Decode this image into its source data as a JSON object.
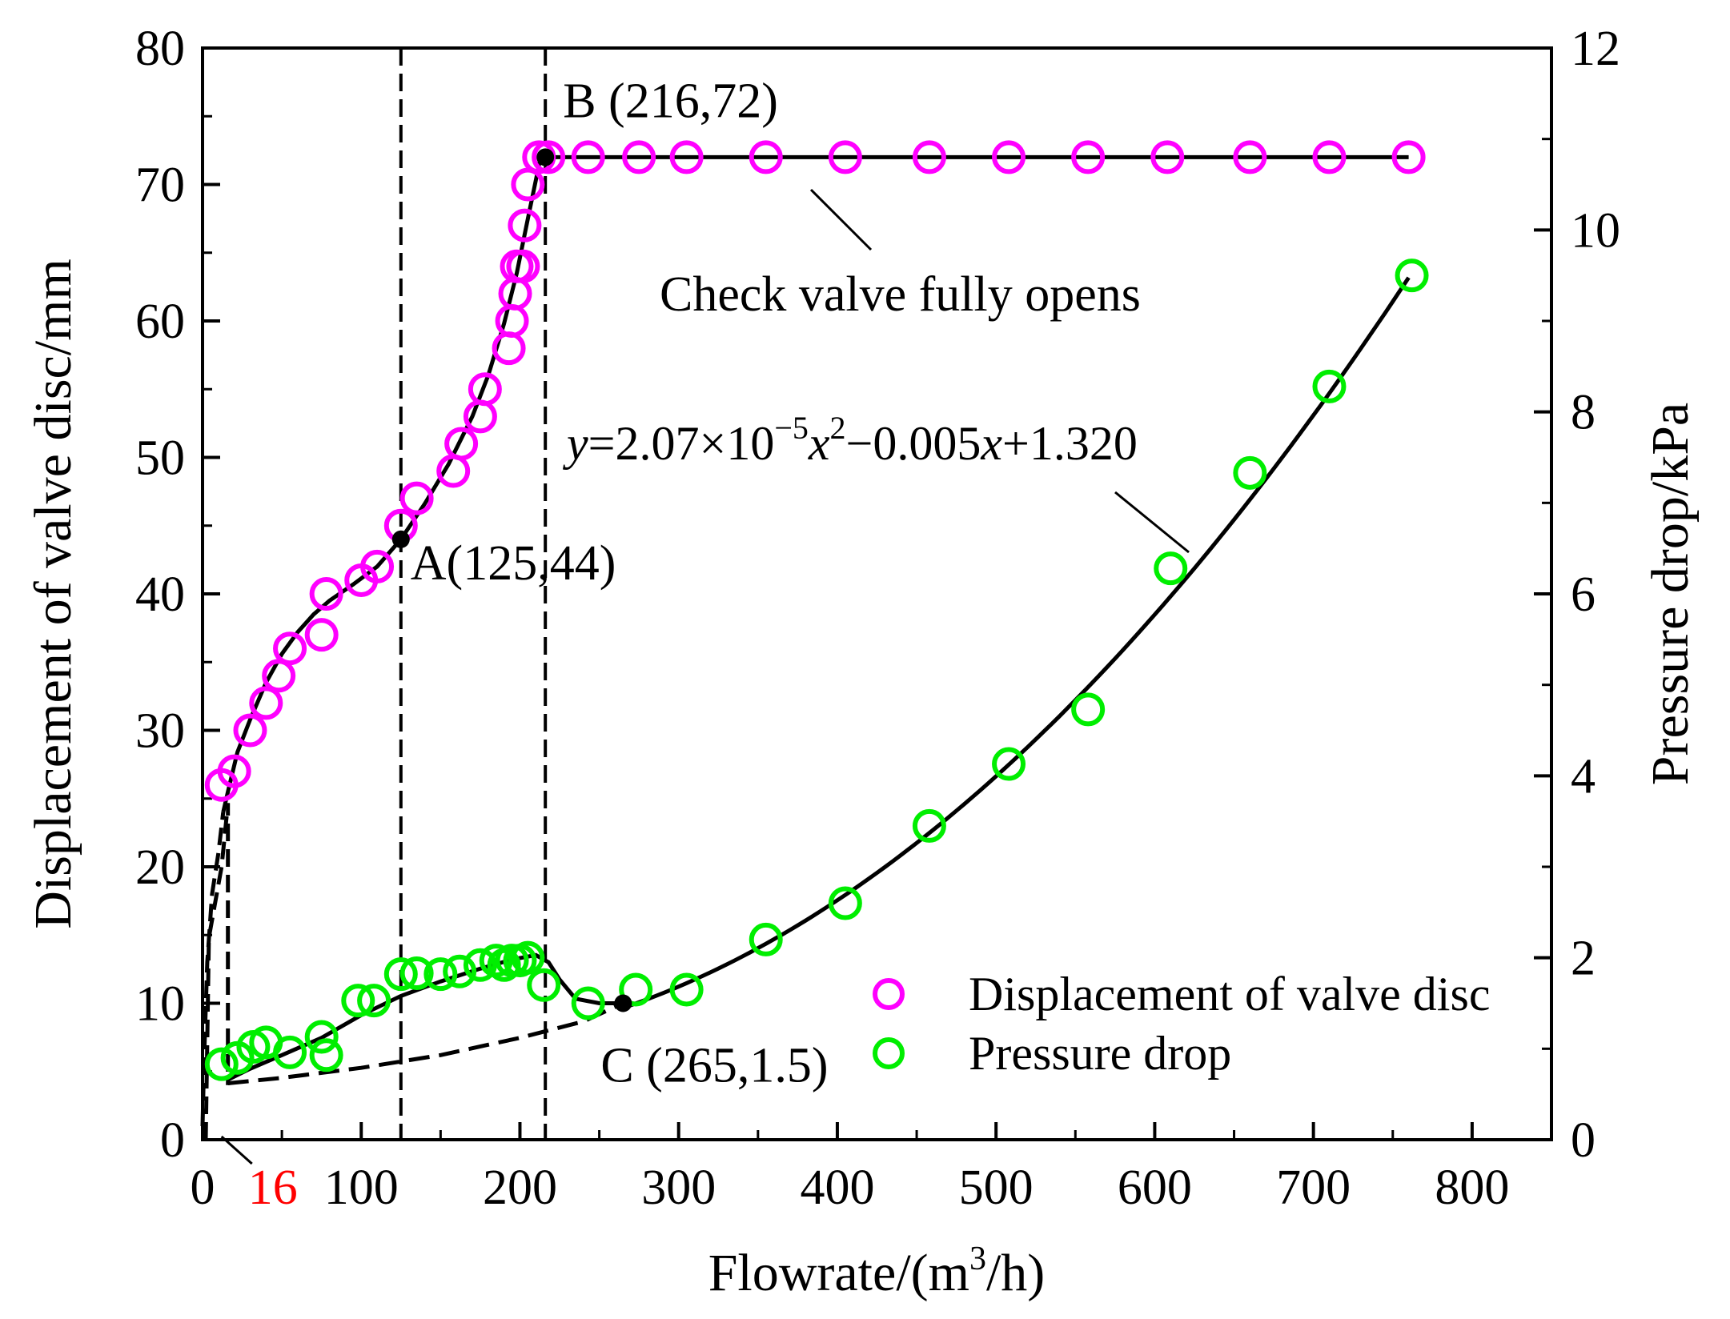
{
  "chart_data": {
    "type": "scatter",
    "xlabel": "Flowrate/(m3/h)",
    "xlabel_parts": {
      "pre": "Flowrate/(m",
      "sup": "3",
      "post": "/h)"
    },
    "ylabel_left": "Displacement of valve disc/mm",
    "ylabel_right": "Pressure drop/kPa",
    "xlim": [
      0,
      850
    ],
    "ylim_left": [
      0,
      80
    ],
    "ylim_right": [
      0,
      12
    ],
    "x_ticks": [
      "0",
      "100",
      "200",
      "300",
      "400",
      "500",
      "600",
      "700",
      "800"
    ],
    "x_tick_values": [
      0,
      100,
      200,
      300,
      400,
      500,
      600,
      700,
      800
    ],
    "y_left_ticks": [
      "0",
      "10",
      "20",
      "30",
      "40",
      "50",
      "60",
      "70",
      "80"
    ],
    "y_left_tick_values": [
      0,
      10,
      20,
      30,
      40,
      50,
      60,
      70,
      80
    ],
    "y_right_ticks": [
      "0",
      "2",
      "4",
      "6",
      "8",
      "10",
      "12"
    ],
    "y_right_tick_values": [
      0,
      2,
      4,
      6,
      8,
      10,
      12
    ],
    "x_marker_label": "16",
    "x_marker_value": 16,
    "x_marker_color": "#ff0000",
    "series": [
      {
        "name": "Displacement of valve disc",
        "axis": "left",
        "color": "#ff00ff",
        "points": [
          [
            12,
            26
          ],
          [
            20,
            27
          ],
          [
            30,
            30
          ],
          [
            40,
            32
          ],
          [
            48,
            34
          ],
          [
            55,
            36
          ],
          [
            75,
            37
          ],
          [
            78,
            40
          ],
          [
            100,
            41
          ],
          [
            110,
            42
          ],
          [
            125,
            45
          ],
          [
            135,
            47
          ],
          [
            158,
            49
          ],
          [
            163,
            51
          ],
          [
            175,
            53
          ],
          [
            178,
            55
          ],
          [
            193,
            58
          ],
          [
            195,
            60
          ],
          [
            197,
            62
          ],
          [
            198,
            64
          ],
          [
            202,
            64
          ],
          [
            203,
            67
          ],
          [
            205,
            70
          ],
          [
            212,
            72
          ],
          [
            218,
            72
          ],
          [
            243,
            72
          ],
          [
            275,
            72
          ],
          [
            305,
            72
          ],
          [
            355,
            72
          ],
          [
            405,
            72
          ],
          [
            458,
            72
          ],
          [
            508,
            72
          ],
          [
            558,
            72
          ],
          [
            608,
            72
          ],
          [
            660,
            72
          ],
          [
            710,
            72
          ],
          [
            760,
            72
          ]
        ]
      },
      {
        "name": "Pressure drop",
        "axis": "right",
        "color": "#00ee00",
        "points": [
          [
            12,
            0.83
          ],
          [
            22,
            0.9
          ],
          [
            32,
            1.02
          ],
          [
            40,
            1.07
          ],
          [
            55,
            0.96
          ],
          [
            75,
            1.13
          ],
          [
            78,
            0.93
          ],
          [
            98,
            1.53
          ],
          [
            108,
            1.53
          ],
          [
            125,
            1.82
          ],
          [
            135,
            1.83
          ],
          [
            150,
            1.82
          ],
          [
            162,
            1.85
          ],
          [
            175,
            1.92
          ],
          [
            185,
            1.97
          ],
          [
            190,
            1.92
          ],
          [
            195,
            1.97
          ],
          [
            200,
            1.97
          ],
          [
            205,
            2.0
          ],
          [
            215,
            1.7
          ],
          [
            243,
            1.5
          ],
          [
            273,
            1.65
          ],
          [
            305,
            1.65
          ],
          [
            355,
            2.2
          ],
          [
            405,
            2.6
          ],
          [
            458,
            3.45
          ],
          [
            508,
            4.13
          ],
          [
            558,
            4.73
          ],
          [
            610,
            6.28
          ],
          [
            660,
            7.33
          ],
          [
            710,
            8.28
          ],
          [
            762,
            9.5
          ]
        ]
      }
    ],
    "fit_displacement": {
      "name": "Displacement fit",
      "axis": "left",
      "points": [
        [
          13,
          24
        ],
        [
          16,
          25.5
        ],
        [
          22,
          28.4
        ],
        [
          30,
          30.8
        ],
        [
          40,
          33.5
        ],
        [
          50,
          35.6
        ],
        [
          60,
          37.2
        ],
        [
          70,
          38.5
        ],
        [
          80,
          39.5
        ],
        [
          95,
          40.7
        ],
        [
          110,
          42.0
        ],
        [
          125,
          44.0
        ],
        [
          140,
          46.6
        ],
        [
          155,
          49.5
        ],
        [
          170,
          53.0
        ],
        [
          180,
          56.0
        ],
        [
          190,
          59.8
        ],
        [
          198,
          63.5
        ],
        [
          205,
          67.5
        ],
        [
          210,
          70.3
        ],
        [
          213,
          72
        ],
        [
          216,
          72
        ],
        [
          760,
          72
        ]
      ]
    },
    "fit_pressure_left": {
      "name": "Pressure fit (below full open)",
      "axis": "right",
      "points": [
        [
          16,
          0.66
        ],
        [
          30,
          0.78
        ],
        [
          50,
          0.93
        ],
        [
          75,
          1.12
        ],
        [
          100,
          1.37
        ],
        [
          125,
          1.58
        ],
        [
          150,
          1.74
        ],
        [
          175,
          1.88
        ],
        [
          195,
          1.98
        ],
        [
          210,
          2.03
        ],
        [
          218,
          1.95
        ],
        [
          225,
          1.76
        ],
        [
          235,
          1.55
        ],
        [
          250,
          1.5
        ],
        [
          265,
          1.5
        ]
      ]
    },
    "fit_pressure_right": {
      "name": "Pressure fit",
      "axis": "right",
      "equation": {
        "a": 2.07e-05,
        "b": -0.005,
        "c": 1.32
      },
      "x_start": 265,
      "x_end": 762
    },
    "dashed_connector": {
      "axis": "right",
      "points": [
        [
          16,
          0.62
        ],
        [
          50,
          0.68
        ],
        [
          100,
          0.79
        ],
        [
          150,
          0.93
        ],
        [
          200,
          1.12
        ],
        [
          240,
          1.3
        ],
        [
          265,
          1.5
        ]
      ]
    },
    "dashed_startup_left": {
      "axis": "left",
      "points": [
        [
          0,
          1
        ],
        [
          1,
          6
        ],
        [
          3,
          13
        ],
        [
          6,
          18
        ],
        [
          10,
          21
        ],
        [
          13,
          24
        ]
      ]
    },
    "dashed_startup_right": {
      "axis": "right",
      "points": [
        [
          2,
          0
        ],
        [
          4,
          2.22
        ],
        [
          12,
          3.0
        ],
        [
          14,
          3.35
        ],
        [
          16,
          3.7
        ],
        [
          16,
          0.6
        ]
      ]
    },
    "vlines": [
      {
        "x": 125,
        "y_top": 80
      },
      {
        "x": 216,
        "y_top": 80
      }
    ],
    "key_points": [
      {
        "x": 125,
        "y": 44,
        "axis": "left",
        "label": "A(125,44)"
      },
      {
        "x": 216,
        "y": 72,
        "axis": "left",
        "label": "B (216,72)"
      },
      {
        "x": 265,
        "y": 1.5,
        "axis": "right",
        "label": "C (265,1.5)"
      }
    ],
    "annotations": {
      "fully_open": "Check valve fully opens",
      "equation": {
        "y": "y",
        "t1": "=2.07×10",
        "exp1": "−5",
        "x1": "x",
        "exp2": "2",
        "t2": "−0.005",
        "x2": "x",
        "t3": "+1.320"
      }
    },
    "legend": {
      "position": "bottom-right",
      "items": [
        {
          "label": "Displacement of valve disc",
          "color": "#ff00ff"
        },
        {
          "label": "Pressure drop",
          "color": "#00ee00"
        }
      ]
    }
  }
}
